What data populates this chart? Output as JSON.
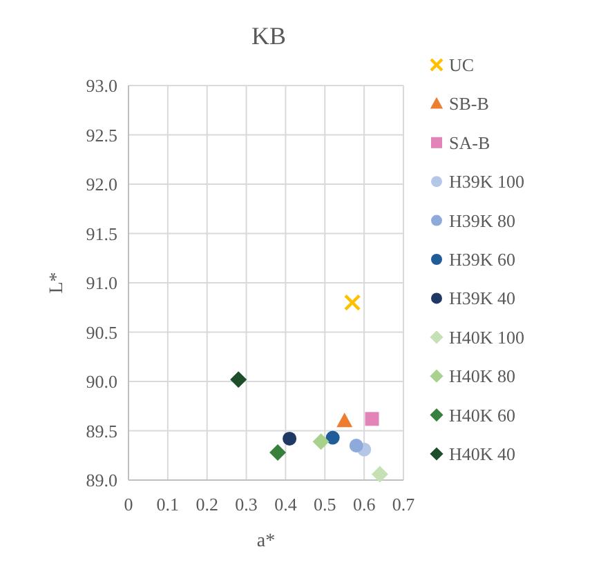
{
  "chart_data": {
    "type": "scatter",
    "title": "KB",
    "xlabel": "a*",
    "ylabel": "L*",
    "xlim": [
      0,
      0.7
    ],
    "xticks": [
      0,
      0.1,
      0.2,
      0.3,
      0.4,
      0.5,
      0.6,
      0.7
    ],
    "ylim": [
      89,
      93
    ],
    "yticks": [
      {
        "value": 89,
        "label": "89.0"
      },
      {
        "value": 89.5,
        "label": "89.5"
      },
      {
        "value": 90,
        "label": "90.0"
      },
      {
        "value": 90.5,
        "label": "90.5"
      },
      {
        "value": 91,
        "label": "91.0"
      },
      {
        "value": 91.5,
        "label": "91.5"
      },
      {
        "value": 92,
        "label": "92.0"
      },
      {
        "value": 92.5,
        "label": "92.5"
      },
      {
        "value": 93,
        "label": "93.0"
      }
    ],
    "grid": true,
    "legend": "right",
    "series": [
      {
        "name": "UC",
        "color": "#ffc000",
        "marker": "cross",
        "x": [
          0.57
        ],
        "values": [
          90.8
        ]
      },
      {
        "name": "SB-B",
        "color": "#ed7d31",
        "marker": "triangle",
        "x": [
          0.55
        ],
        "values": [
          89.6
        ]
      },
      {
        "name": "SA-B",
        "color": "#e384b8",
        "marker": "square",
        "x": [
          0.62
        ],
        "values": [
          89.62
        ]
      },
      {
        "name": "H39K 100",
        "color": "#b4c7e7",
        "marker": "circle",
        "x": [
          0.6
        ],
        "values": [
          89.31
        ]
      },
      {
        "name": "H39K 80",
        "color": "#8eaadb",
        "marker": "circle",
        "x": [
          0.58
        ],
        "values": [
          89.35
        ]
      },
      {
        "name": "H39K 60",
        "color": "#1f5c99",
        "marker": "circle",
        "x": [
          0.52
        ],
        "values": [
          89.43
        ]
      },
      {
        "name": "H39K 40",
        "color": "#1f3864",
        "marker": "circle",
        "x": [
          0.41
        ],
        "values": [
          89.42
        ]
      },
      {
        "name": "H40K 100",
        "color": "#c5e0b4",
        "marker": "diamond",
        "x": [
          0.64
        ],
        "values": [
          89.06
        ]
      },
      {
        "name": "H40K 80",
        "color": "#a9d18e",
        "marker": "diamond",
        "x": [
          0.49
        ],
        "values": [
          89.39
        ]
      },
      {
        "name": "H40K 60",
        "color": "#38803d",
        "marker": "diamond",
        "x": [
          0.38
        ],
        "values": [
          89.28
        ]
      },
      {
        "name": "H40K 40",
        "color": "#1e4d2b",
        "marker": "diamond",
        "x": [
          0.28
        ],
        "values": [
          90.02
        ]
      }
    ]
  }
}
